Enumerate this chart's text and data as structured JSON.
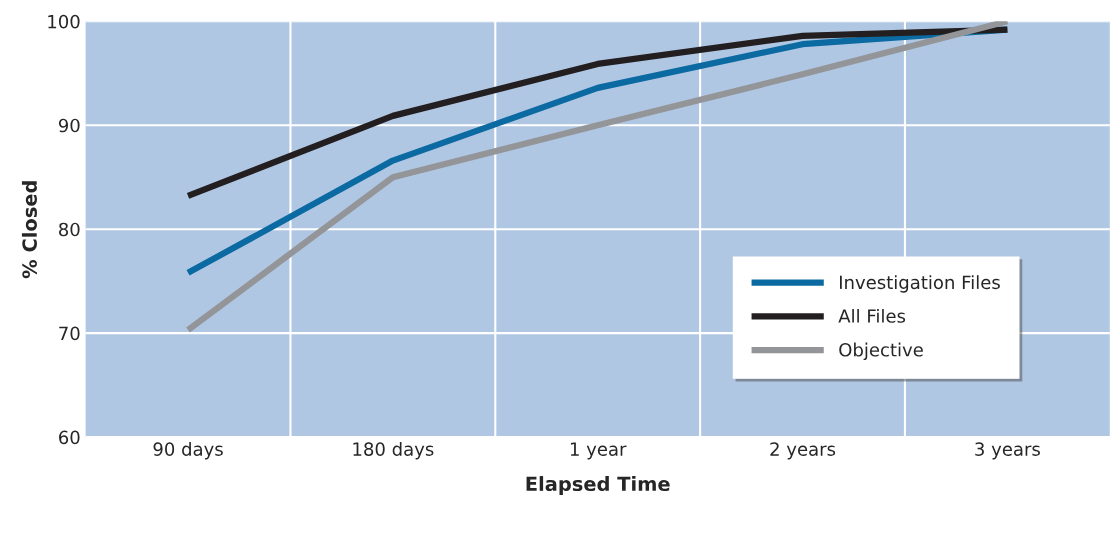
{
  "chart_data": {
    "type": "line",
    "xlabel": "Elapsed Time",
    "ylabel": "% Closed",
    "categories": [
      "90 days",
      "180 days",
      "1 year",
      "2 years",
      "3 years"
    ],
    "series": [
      {
        "name": "Investigation Files",
        "color": "#0a6aa1",
        "values": [
          75.8,
          86.6,
          93.6,
          97.8,
          99.2
        ]
      },
      {
        "name": "All Files",
        "color": "#231f20",
        "values": [
          83.2,
          90.9,
          95.9,
          98.6,
          99.2
        ]
      },
      {
        "name": "Objective",
        "color": "#939598",
        "values": [
          70.3,
          85.0,
          90.0,
          94.9,
          100
        ]
      }
    ],
    "ylim": [
      60,
      100
    ],
    "yticks": [
      60,
      70,
      80,
      90,
      100
    ],
    "grid": true,
    "legend": "bottom right",
    "marker": "none",
    "line_style": "solid"
  }
}
